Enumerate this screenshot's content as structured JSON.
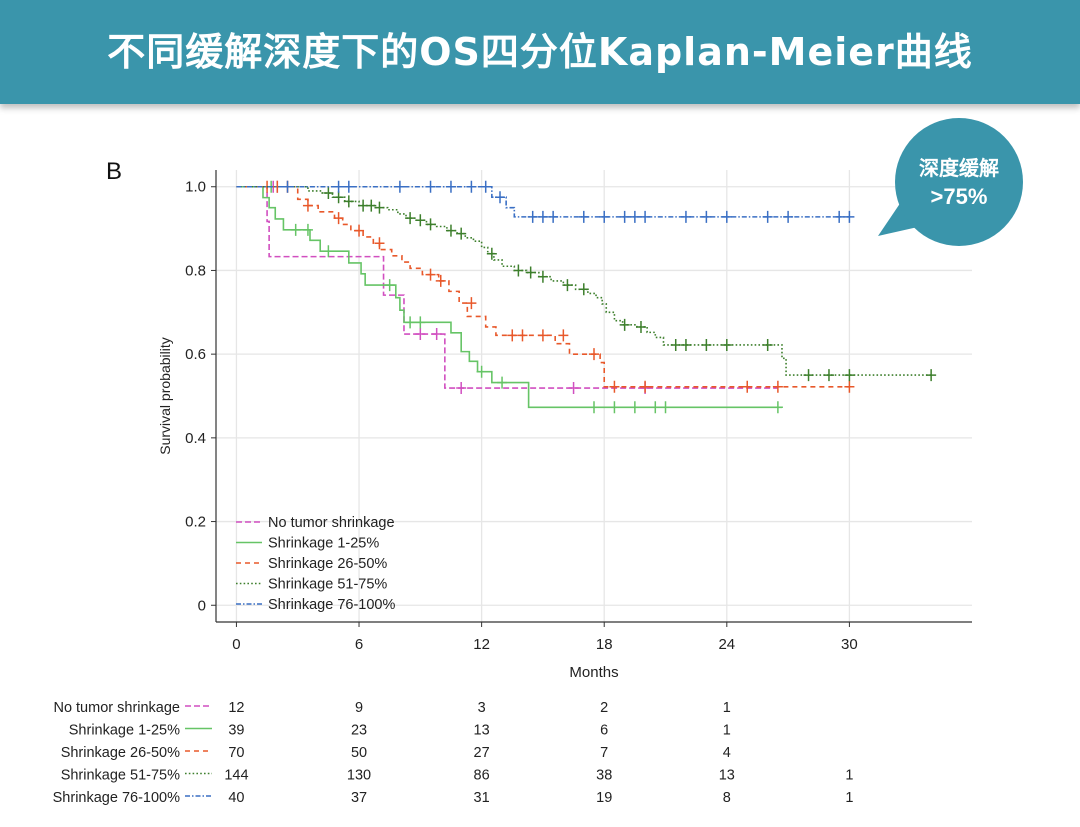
{
  "banner": {
    "title": "不同缓解深度下的OS四分位Kaplan-Meier曲线"
  },
  "panel_label": "B",
  "callout": {
    "line1": "深度缓解",
    "line2": ">75%"
  },
  "chart_data": {
    "type": "line",
    "subtype": "kaplan-meier",
    "xlabel": "Months",
    "ylabel": "Survival probability",
    "xlim": [
      -1,
      36
    ],
    "ylim": [
      -0.04,
      1.04
    ],
    "x_ticks": [
      0,
      6,
      12,
      18,
      24,
      30
    ],
    "y_ticks": [
      0,
      0.2,
      0.4,
      0.6,
      0.8,
      1.0
    ],
    "y_tick_labels": [
      "0",
      "0.2",
      "0.4",
      "0.6",
      "0.8",
      "1.0"
    ],
    "grid": true,
    "legend_position": "bottom-left",
    "series": [
      {
        "name": "No tumor shrinkage",
        "color": "#d14fc0",
        "dash": "6,3",
        "steps": [
          [
            0,
            1.0
          ],
          [
            1.5,
            0.917
          ],
          [
            1.6,
            0.833
          ],
          [
            7.2,
            0.741
          ],
          [
            8.2,
            0.648
          ],
          [
            10.2,
            0.519
          ],
          [
            26.5,
            0.519
          ]
        ],
        "censors": [
          [
            1.8,
            1.0
          ],
          [
            2.0,
            1.0
          ],
          [
            9.0,
            0.648
          ],
          [
            9.8,
            0.648
          ],
          [
            11.0,
            0.519
          ],
          [
            16.5,
            0.519
          ],
          [
            20.0,
            0.519
          ]
        ],
        "at_risk": [
          12,
          9,
          3,
          2,
          1,
          null
        ]
      },
      {
        "name": "Shrinkage 1-25%",
        "color": "#66c466",
        "dash": "",
        "steps": [
          [
            0,
            1.0
          ],
          [
            1.3,
            0.974
          ],
          [
            1.6,
            0.95
          ],
          [
            1.9,
            0.923
          ],
          [
            2.3,
            0.897
          ],
          [
            3.6,
            0.872
          ],
          [
            4.1,
            0.846
          ],
          [
            5.5,
            0.818
          ],
          [
            6.1,
            0.792
          ],
          [
            6.3,
            0.765
          ],
          [
            7.8,
            0.735
          ],
          [
            8.0,
            0.705
          ],
          [
            8.2,
            0.676
          ],
          [
            10.5,
            0.651
          ],
          [
            11.0,
            0.606
          ],
          [
            11.4,
            0.583
          ],
          [
            11.8,
            0.558
          ],
          [
            12.5,
            0.532
          ],
          [
            14.3,
            0.473
          ],
          [
            26.7,
            0.473
          ]
        ],
        "censors": [
          [
            1.7,
            1.0
          ],
          [
            2.9,
            0.897
          ],
          [
            3.5,
            0.897
          ],
          [
            4.5,
            0.846
          ],
          [
            7.5,
            0.765
          ],
          [
            8.5,
            0.676
          ],
          [
            9.0,
            0.676
          ],
          [
            12.0,
            0.558
          ],
          [
            13.0,
            0.532
          ],
          [
            17.5,
            0.473
          ],
          [
            18.5,
            0.473
          ],
          [
            19.5,
            0.473
          ],
          [
            20.5,
            0.473
          ],
          [
            21.0,
            0.473
          ],
          [
            26.5,
            0.473
          ]
        ],
        "at_risk": [
          39,
          23,
          13,
          6,
          1,
          null
        ]
      },
      {
        "name": "Shrinkage 26-50%",
        "color": "#e8582a",
        "dash": "5,4",
        "steps": [
          [
            0,
            1.0
          ],
          [
            3.0,
            0.97
          ],
          [
            3.5,
            0.955
          ],
          [
            4.0,
            0.94
          ],
          [
            4.8,
            0.925
          ],
          [
            5.2,
            0.91
          ],
          [
            5.6,
            0.895
          ],
          [
            6.2,
            0.88
          ],
          [
            6.7,
            0.865
          ],
          [
            7.0,
            0.85
          ],
          [
            7.6,
            0.835
          ],
          [
            8.1,
            0.82
          ],
          [
            8.5,
            0.805
          ],
          [
            9.1,
            0.79
          ],
          [
            9.9,
            0.775
          ],
          [
            10.4,
            0.75
          ],
          [
            10.9,
            0.722
          ],
          [
            11.3,
            0.69
          ],
          [
            12.2,
            0.665
          ],
          [
            12.7,
            0.645
          ],
          [
            15.6,
            0.625
          ],
          [
            16.3,
            0.6
          ],
          [
            17.8,
            0.58
          ],
          [
            18.0,
            0.522
          ],
          [
            30,
            0.522
          ]
        ],
        "censors": [
          [
            1.5,
            1.0
          ],
          [
            2.0,
            1.0
          ],
          [
            2.5,
            1.0
          ],
          [
            3.5,
            0.955
          ],
          [
            5.0,
            0.925
          ],
          [
            6.0,
            0.895
          ],
          [
            7.0,
            0.865
          ],
          [
            9.5,
            0.79
          ],
          [
            10.0,
            0.775
          ],
          [
            11.5,
            0.722
          ],
          [
            13.5,
            0.645
          ],
          [
            14.0,
            0.645
          ],
          [
            15.0,
            0.645
          ],
          [
            16.0,
            0.645
          ],
          [
            17.5,
            0.6
          ],
          [
            18.5,
            0.522
          ],
          [
            20.0,
            0.522
          ],
          [
            25.0,
            0.522
          ],
          [
            26.5,
            0.522
          ],
          [
            30.0,
            0.522
          ]
        ],
        "at_risk": [
          70,
          50,
          27,
          7,
          4,
          null
        ]
      },
      {
        "name": "Shrinkage 51-75%",
        "color": "#3d7f2c",
        "dash": "1.6,2.2",
        "steps": [
          [
            0,
            1.0
          ],
          [
            3.5,
            0.99
          ],
          [
            4.2,
            0.985
          ],
          [
            4.7,
            0.975
          ],
          [
            5.3,
            0.965
          ],
          [
            6.0,
            0.955
          ],
          [
            6.8,
            0.95
          ],
          [
            7.4,
            0.945
          ],
          [
            7.9,
            0.935
          ],
          [
            8.3,
            0.925
          ],
          [
            8.8,
            0.92
          ],
          [
            9.3,
            0.91
          ],
          [
            9.8,
            0.905
          ],
          [
            10.3,
            0.895
          ],
          [
            10.8,
            0.888
          ],
          [
            11.2,
            0.878
          ],
          [
            11.6,
            0.87
          ],
          [
            12.0,
            0.855
          ],
          [
            12.3,
            0.84
          ],
          [
            12.6,
            0.825
          ],
          [
            13.0,
            0.81
          ],
          [
            13.6,
            0.8
          ],
          [
            14.2,
            0.795
          ],
          [
            14.8,
            0.785
          ],
          [
            15.4,
            0.775
          ],
          [
            16.0,
            0.765
          ],
          [
            16.6,
            0.755
          ],
          [
            17.2,
            0.745
          ],
          [
            17.6,
            0.735
          ],
          [
            17.9,
            0.72
          ],
          [
            18.1,
            0.7
          ],
          [
            18.5,
            0.68
          ],
          [
            18.9,
            0.67
          ],
          [
            19.6,
            0.665
          ],
          [
            20.1,
            0.652
          ],
          [
            20.5,
            0.64
          ],
          [
            20.9,
            0.622
          ],
          [
            26.7,
            0.59
          ],
          [
            26.9,
            0.55
          ],
          [
            34,
            0.55
          ]
        ],
        "censors": [
          [
            4.5,
            0.985
          ],
          [
            5.0,
            0.975
          ],
          [
            5.5,
            0.965
          ],
          [
            6.2,
            0.955
          ],
          [
            6.6,
            0.955
          ],
          [
            7.0,
            0.95
          ],
          [
            8.5,
            0.925
          ],
          [
            9.0,
            0.92
          ],
          [
            9.5,
            0.91
          ],
          [
            10.5,
            0.895
          ],
          [
            11.0,
            0.888
          ],
          [
            12.5,
            0.84
          ],
          [
            13.8,
            0.8
          ],
          [
            14.4,
            0.795
          ],
          [
            15.0,
            0.785
          ],
          [
            16.2,
            0.765
          ],
          [
            17.0,
            0.755
          ],
          [
            19.0,
            0.67
          ],
          [
            19.8,
            0.665
          ],
          [
            21.5,
            0.622
          ],
          [
            22.0,
            0.622
          ],
          [
            23.0,
            0.622
          ],
          [
            24.0,
            0.622
          ],
          [
            26.0,
            0.622
          ],
          [
            28.0,
            0.55
          ],
          [
            29.0,
            0.55
          ],
          [
            30.0,
            0.55
          ],
          [
            34.0,
            0.55
          ]
        ],
        "at_risk": [
          144,
          130,
          86,
          38,
          13,
          1
        ]
      },
      {
        "name": "Shrinkage 76-100%",
        "color": "#3a6fc4",
        "dash": "5,2,1.5,2",
        "steps": [
          [
            0,
            1.0
          ],
          [
            12.5,
            0.975
          ],
          [
            13.2,
            0.95
          ],
          [
            13.6,
            0.928
          ],
          [
            30,
            0.928
          ]
        ],
        "censors": [
          [
            2.5,
            1.0
          ],
          [
            5.0,
            1.0
          ],
          [
            5.5,
            1.0
          ],
          [
            8.0,
            1.0
          ],
          [
            9.5,
            1.0
          ],
          [
            10.5,
            1.0
          ],
          [
            11.5,
            1.0
          ],
          [
            12.2,
            1.0
          ],
          [
            12.9,
            0.975
          ],
          [
            14.5,
            0.928
          ],
          [
            15.0,
            0.928
          ],
          [
            15.5,
            0.928
          ],
          [
            17.0,
            0.928
          ],
          [
            18.0,
            0.928
          ],
          [
            19.0,
            0.928
          ],
          [
            19.5,
            0.928
          ],
          [
            20.0,
            0.928
          ],
          [
            22.0,
            0.928
          ],
          [
            23.0,
            0.928
          ],
          [
            24.0,
            0.928
          ],
          [
            26.0,
            0.928
          ],
          [
            27.0,
            0.928
          ],
          [
            29.5,
            0.928
          ],
          [
            30.0,
            0.928
          ]
        ],
        "at_risk": [
          40,
          37,
          31,
          19,
          8,
          1
        ]
      }
    ],
    "risk_table_times": [
      0,
      6,
      12,
      18,
      24,
      30
    ]
  }
}
